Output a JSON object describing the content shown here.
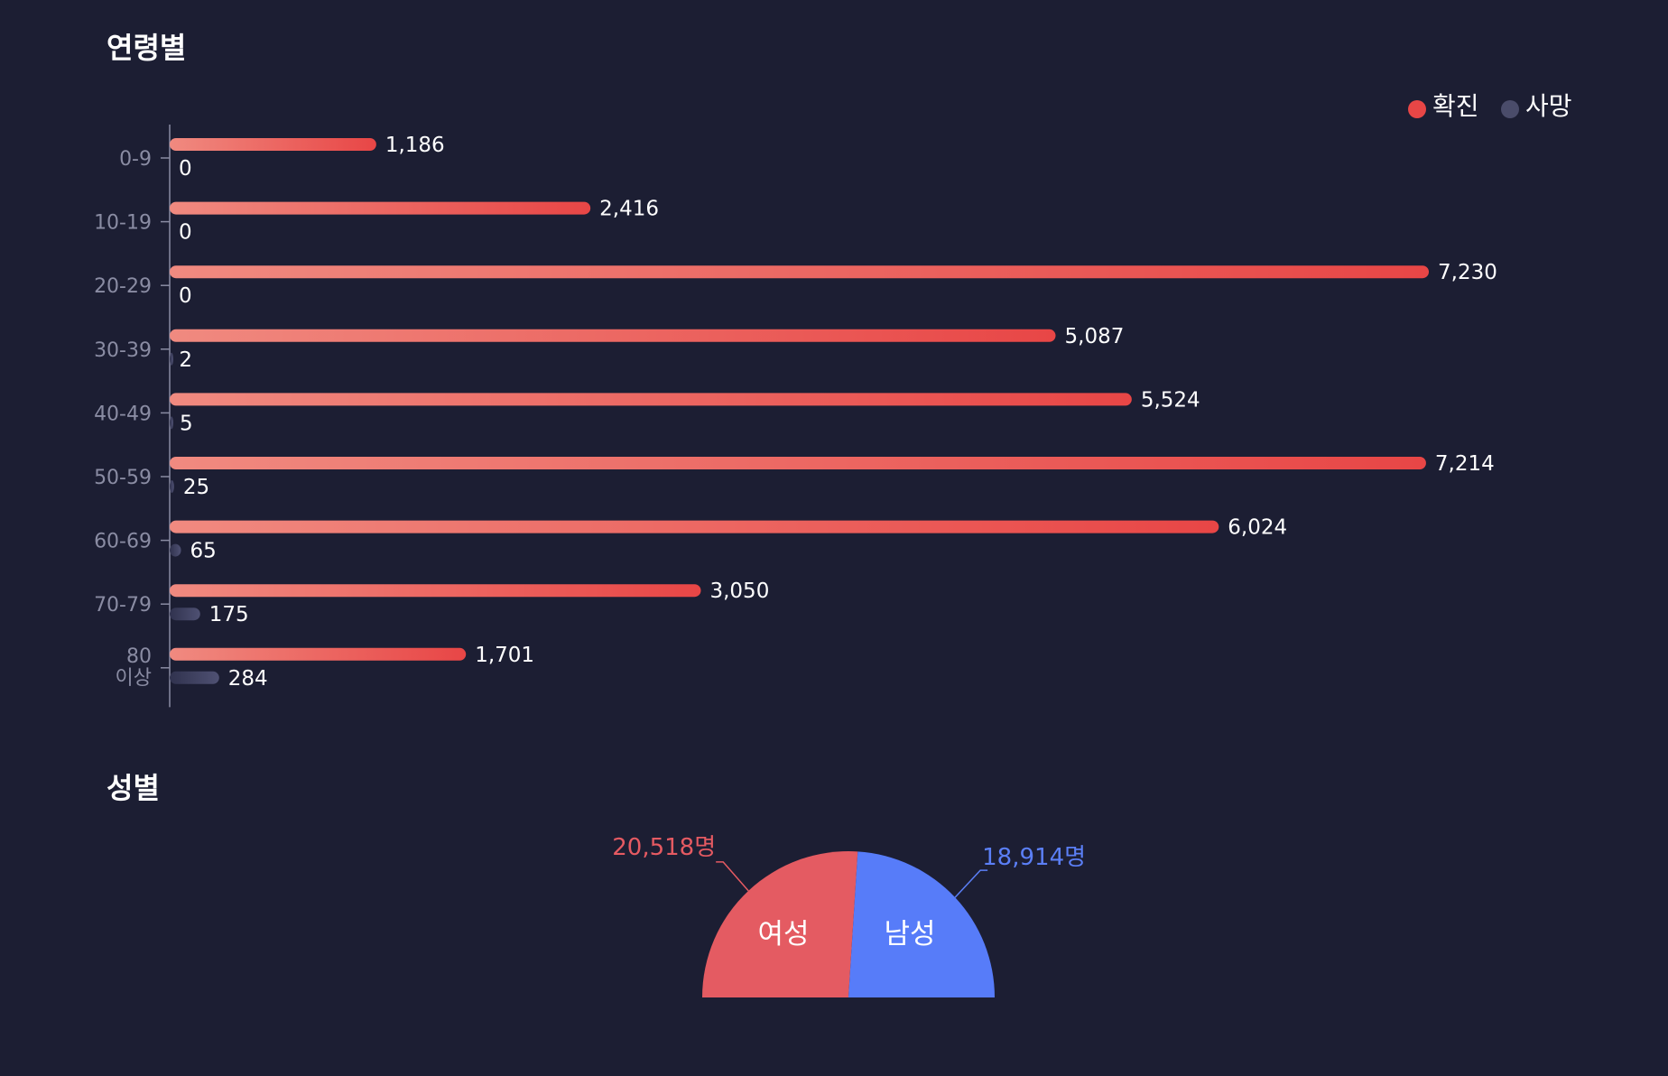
{
  "sections": {
    "age_title": "연령별",
    "gender_title": "성별"
  },
  "colors": {
    "background": "#1c1e33",
    "confirmed_start": "#f08a80",
    "confirmed_end": "#e84646",
    "deaths_start": "#30324e",
    "deaths_end": "#4f5173",
    "female": "#e45b62",
    "male": "#577cf9",
    "female_label": "#e55a62",
    "male_label": "#5b7ff6",
    "axis": "#8a8ca3",
    "value_text": "#ffffff"
  },
  "chart_data": [
    {
      "type": "bar",
      "orientation": "horizontal",
      "categories": [
        "0-9",
        "10-19",
        "20-29",
        "30-39",
        "40-49",
        "50-59",
        "60-69",
        "70-79",
        "80 이상"
      ],
      "series": [
        {
          "name": "확진",
          "values": [
            1186,
            2416,
            7230,
            5087,
            5524,
            7214,
            6024,
            3050,
            1701
          ]
        },
        {
          "name": "사망",
          "values": [
            0,
            0,
            0,
            2,
            5,
            25,
            65,
            175,
            284
          ]
        }
      ],
      "value_labels": {
        "확진": [
          "1,186",
          "2,416",
          "7,230",
          "5,087",
          "5,524",
          "7,214",
          "6,024",
          "3,050",
          "1,701"
        ],
        "사망": [
          "0",
          "0",
          "0",
          "2",
          "5",
          "25",
          "65",
          "175",
          "284"
        ]
      },
      "legend": [
        "확진",
        "사망"
      ],
      "legend_position": "top-right",
      "grid": false
    },
    {
      "type": "pie",
      "variant": "half-donut-semicircle",
      "labels": [
        "여성",
        "남성"
      ],
      "values": [
        20518,
        18914
      ],
      "value_labels": [
        "20,518명",
        "18,914명"
      ]
    }
  ]
}
